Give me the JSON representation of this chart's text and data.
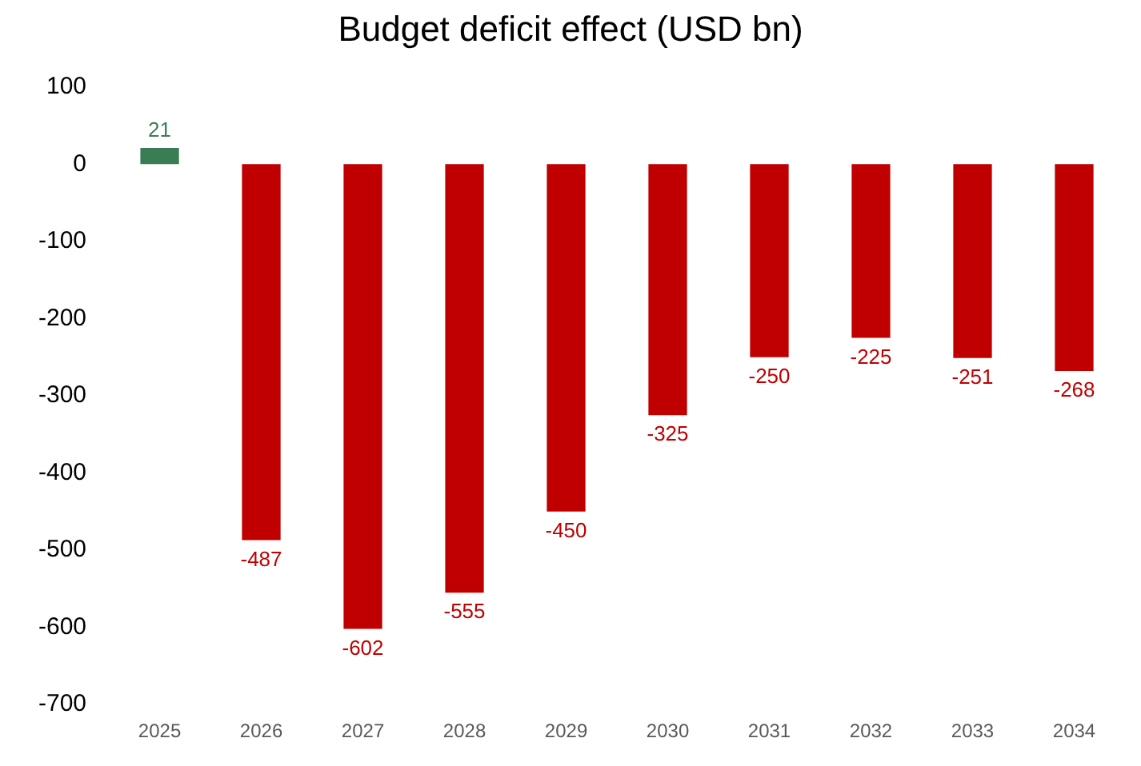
{
  "chart_data": {
    "type": "bar",
    "title": "Budget deficit effect (USD bn)",
    "categories": [
      "2025",
      "2026",
      "2027",
      "2028",
      "2029",
      "2030",
      "2031",
      "2032",
      "2033",
      "2034"
    ],
    "values": [
      21,
      -487,
      -602,
      -555,
      -450,
      -325,
      -250,
      -225,
      -251,
      -268
    ],
    "colors": [
      "#3a7d55",
      "#c00000",
      "#c00000",
      "#c00000",
      "#c00000",
      "#c00000",
      "#c00000",
      "#c00000",
      "#c00000",
      "#c00000"
    ],
    "ylim": [
      -700,
      100
    ],
    "yticks": [
      100,
      0,
      -100,
      -200,
      -300,
      -400,
      -500,
      -600,
      -700
    ],
    "data_labels": true,
    "grid": false,
    "legend": false
  }
}
